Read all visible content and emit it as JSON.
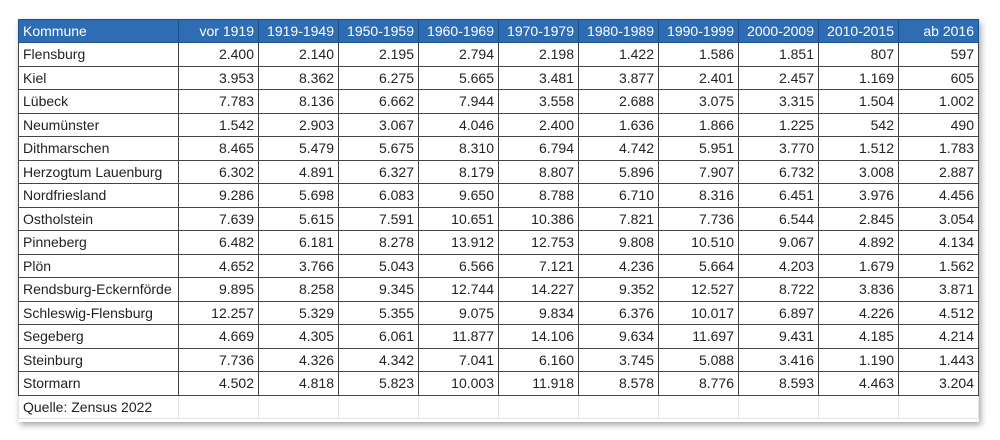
{
  "table": {
    "headers": [
      "Kommune",
      "vor 1919",
      "1919-1949",
      "1950-1959",
      "1960-1969",
      "1970-1979",
      "1980-1989",
      "1990-1999",
      "2000-2009",
      "2010-2015",
      "ab 2016"
    ],
    "rows": [
      [
        "Flensburg",
        "2.400",
        "2.140",
        "2.195",
        "2.794",
        "2.198",
        "1.422",
        "1.586",
        "1.851",
        "807",
        "597"
      ],
      [
        "Kiel",
        "3.953",
        "8.362",
        "6.275",
        "5.665",
        "3.481",
        "3.877",
        "2.401",
        "2.457",
        "1.169",
        "605"
      ],
      [
        "Lübeck",
        "7.783",
        "8.136",
        "6.662",
        "7.944",
        "3.558",
        "2.688",
        "3.075",
        "3.315",
        "1.504",
        "1.002"
      ],
      [
        "Neumünster",
        "1.542",
        "2.903",
        "3.067",
        "4.046",
        "2.400",
        "1.636",
        "1.866",
        "1.225",
        "542",
        "490"
      ],
      [
        "Dithmarschen",
        "8.465",
        "5.479",
        "5.675",
        "8.310",
        "6.794",
        "4.742",
        "5.951",
        "3.770",
        "1.512",
        "1.783"
      ],
      [
        "Herzogtum Lauenburg",
        "6.302",
        "4.891",
        "6.327",
        "8.179",
        "8.807",
        "5.896",
        "7.907",
        "6.732",
        "3.008",
        "2.887"
      ],
      [
        "Nordfriesland",
        "9.286",
        "5.698",
        "6.083",
        "9.650",
        "8.788",
        "6.710",
        "8.316",
        "6.451",
        "3.976",
        "4.456"
      ],
      [
        "Ostholstein",
        "7.639",
        "5.615",
        "7.591",
        "10.651",
        "10.386",
        "7.821",
        "7.736",
        "6.544",
        "2.845",
        "3.054"
      ],
      [
        "Pinneberg",
        "6.482",
        "6.181",
        "8.278",
        "13.912",
        "12.753",
        "9.808",
        "10.510",
        "9.067",
        "4.892",
        "4.134"
      ],
      [
        "Plön",
        "4.652",
        "3.766",
        "5.043",
        "6.566",
        "7.121",
        "4.236",
        "5.664",
        "4.203",
        "1.679",
        "1.562"
      ],
      [
        "Rendsburg-Eckernförde",
        "9.895",
        "8.258",
        "9.345",
        "12.744",
        "14.227",
        "9.352",
        "12.527",
        "8.722",
        "3.836",
        "3.871"
      ],
      [
        "Schleswig-Flensburg",
        "12.257",
        "5.329",
        "5.355",
        "9.075",
        "9.834",
        "6.376",
        "10.017",
        "6.897",
        "4.226",
        "4.512"
      ],
      [
        "Segeberg",
        "4.669",
        "4.305",
        "6.061",
        "11.877",
        "14.106",
        "9.634",
        "11.697",
        "9.431",
        "4.185",
        "4.214"
      ],
      [
        "Steinburg",
        "7.736",
        "4.326",
        "4.342",
        "7.041",
        "6.160",
        "3.745",
        "5.088",
        "3.416",
        "1.190",
        "1.443"
      ],
      [
        "Stormarn",
        "4.502",
        "4.818",
        "5.823",
        "10.003",
        "11.918",
        "8.578",
        "8.776",
        "8.593",
        "4.463",
        "3.204"
      ]
    ],
    "source": "Quelle: Zensus 2022"
  },
  "colors": {
    "header_bg": "#2e6db4",
    "header_text": "#ffffff"
  }
}
